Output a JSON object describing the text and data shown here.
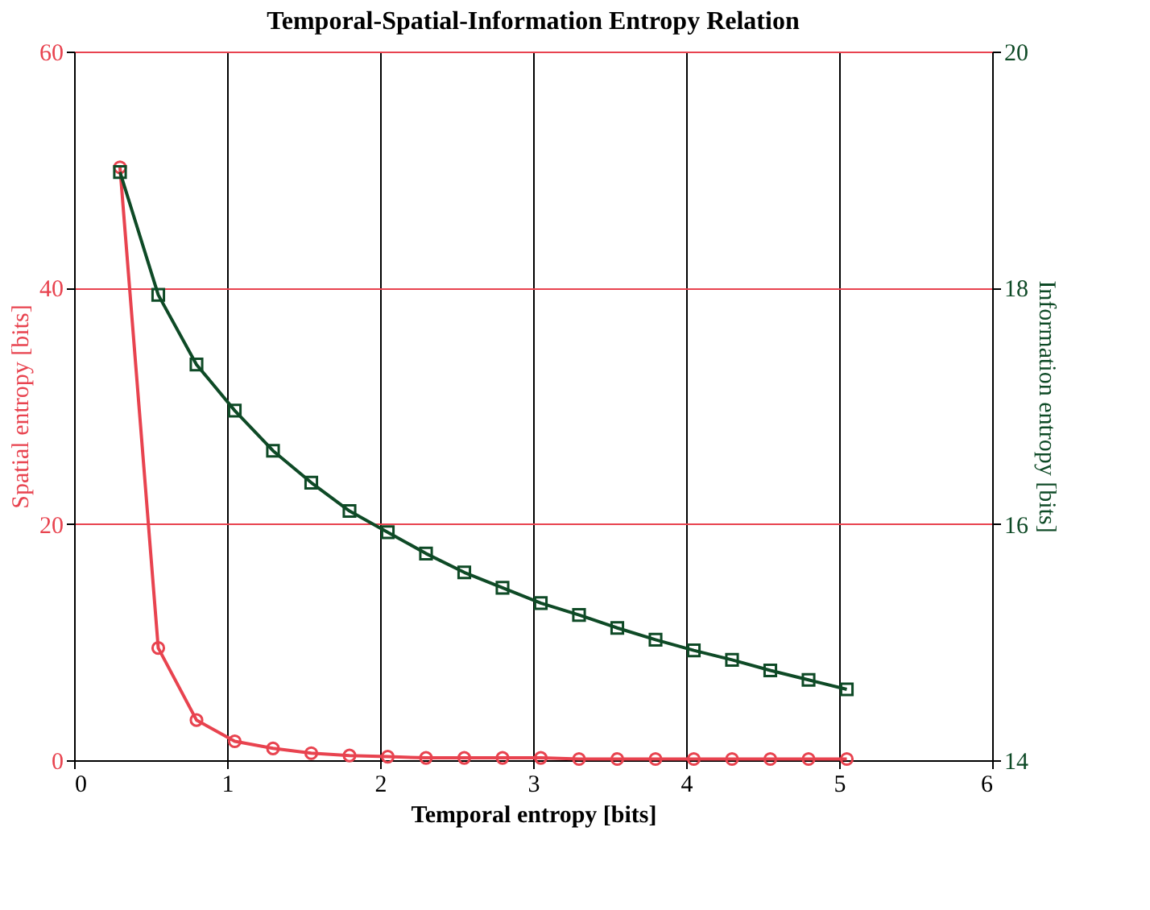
{
  "chart_data": {
    "type": "line",
    "title": "Temporal-Spatial-Information Entropy Relation",
    "xlabel": "Temporal entropy [bits]",
    "ylabel": "Spatial entropy [bits]",
    "y2label": "Information entropy [bits]",
    "x": [
      0.3,
      0.55,
      0.8,
      1.05,
      1.3,
      1.55,
      1.8,
      2.05,
      2.3,
      2.55,
      2.8,
      3.05,
      3.3,
      3.55,
      3.8,
      4.05,
      4.3,
      4.55,
      4.8,
      5.05
    ],
    "series": [
      {
        "color": "#e8434f",
        "marker": "circle",
        "values": [
          50.2,
          9.5,
          3.4,
          1.6,
          1.0,
          0.6,
          0.4,
          0.3,
          0.2,
          0.2,
          0.2,
          0.2,
          0.1,
          0.1,
          0.1,
          0.1,
          0.1,
          0.1,
          0.1,
          0.1
        ]
      },
      {
        "color": "#0e4a26",
        "marker": "square",
        "axis": "y2",
        "values": [
          18.98,
          17.94,
          17.35,
          16.96,
          16.62,
          16.35,
          16.11,
          15.93,
          15.75,
          15.59,
          15.46,
          15.33,
          15.23,
          15.12,
          15.02,
          14.93,
          14.85,
          14.76,
          14.68,
          14.6
        ]
      }
    ],
    "xlim": [
      0,
      6
    ],
    "xticks": [
      0,
      1,
      2,
      3,
      4,
      5,
      6
    ],
    "ylim": [
      0,
      60
    ],
    "yticks": [
      0,
      20,
      40,
      60
    ],
    "y2lim": [
      14,
      20
    ],
    "y2ticks": [
      14,
      16,
      18,
      20
    ],
    "grid": true,
    "line_style": "solid"
  }
}
